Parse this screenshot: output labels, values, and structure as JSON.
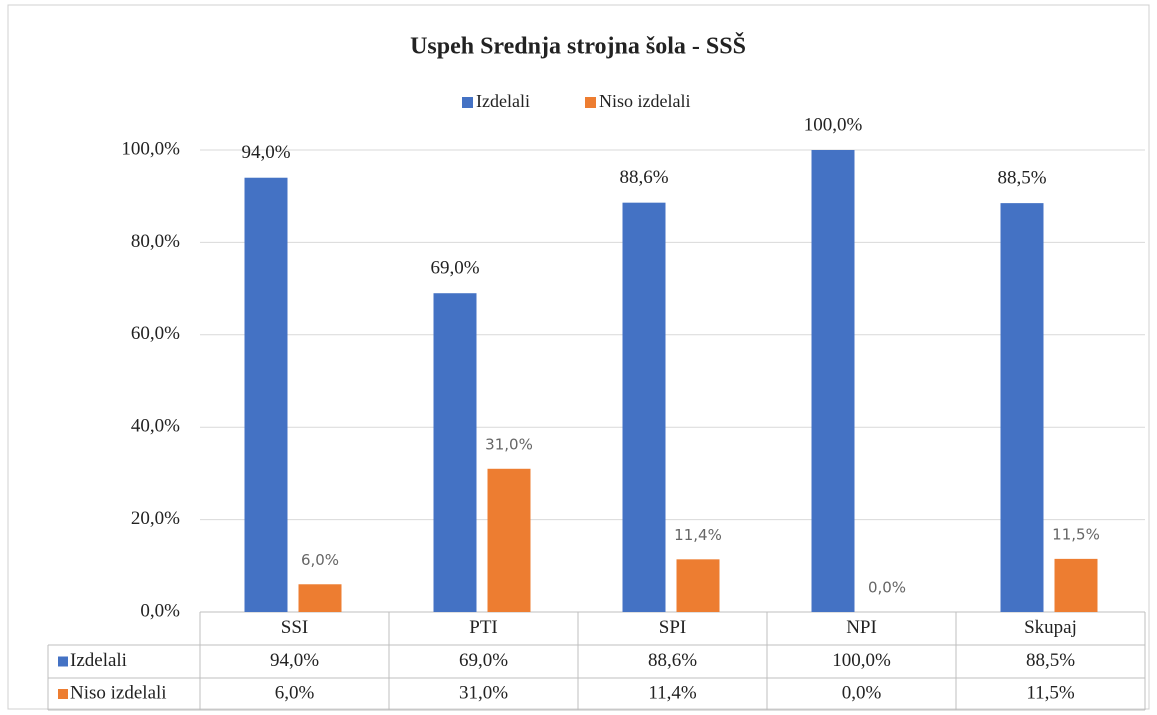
{
  "chart_data": {
    "type": "bar",
    "title": "Uspeh Srednja strojna šola - SSŠ",
    "categories": [
      "SSI",
      "PTI",
      "SPI",
      "NPI",
      "Skupaj"
    ],
    "series": [
      {
        "name": "Izdelali",
        "color": "#4472c4",
        "values": [
          94,
          69,
          88.6,
          100,
          88.5
        ],
        "value_labels": [
          "94,0%",
          "69,0%",
          "88,6%",
          "100,0%",
          "88,5%"
        ]
      },
      {
        "name": "Niso izdelali",
        "color": "#ed7d31",
        "values": [
          6,
          31,
          11.4,
          0,
          11.5
        ],
        "value_labels": [
          "6,0%",
          "31,0%",
          "11,4%",
          "0,0%",
          "11,5%"
        ]
      }
    ],
    "ylim": [
      0,
      100
    ],
    "yticks": [
      {
        "value": 0,
        "label": "0,0%"
      },
      {
        "value": 20,
        "label": "20,0%"
      },
      {
        "value": 40,
        "label": "40,0%"
      },
      {
        "value": 60,
        "label": "60,0%"
      },
      {
        "value": 80,
        "label": "80,0%"
      },
      {
        "value": 100,
        "label": "100,0%"
      }
    ],
    "grid": true,
    "legend": "top",
    "data_table": true
  }
}
